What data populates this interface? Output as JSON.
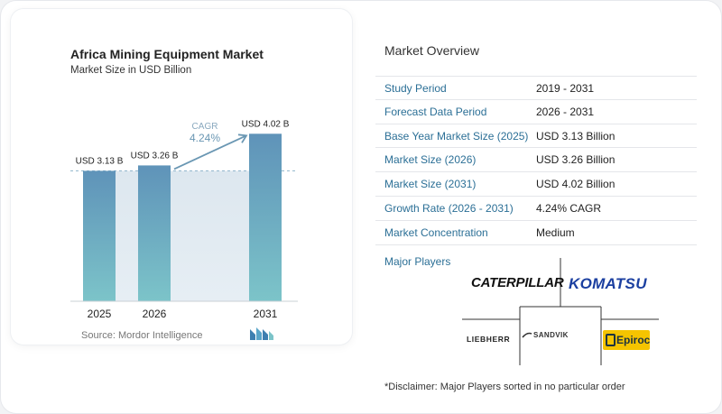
{
  "chart": {
    "title": "Africa Mining Equipment Market",
    "subtitle": "Market Size in USD Billion",
    "source": "Source: Mordor Intelligence",
    "cagr_label": "CAGR",
    "cagr_value": "4.24%"
  },
  "chart_data": {
    "type": "bar",
    "categories": [
      "2025",
      "2026",
      "2031"
    ],
    "values": [
      3.13,
      3.26,
      4.02
    ],
    "data_labels": [
      "USD 3.13 B",
      "USD 3.26 B",
      "USD 4.02 B"
    ],
    "title": "Africa Mining Equipment Market",
    "subtitle": "Market Size in USD Billion",
    "xlabel": "",
    "ylabel": "",
    "ylim": [
      0,
      4.2
    ],
    "annotation": "CAGR 4.24%",
    "colors": {
      "bar_top": "#5f93b9",
      "bar_bottom": "#7cc4c9",
      "band": "#e3ebf2",
      "arrow": "#6a97b3",
      "cagr_text": "#6a97b3"
    }
  },
  "overview": {
    "title": "Market Overview",
    "rows": [
      {
        "label": "Study Period",
        "value": "2019 - 2031"
      },
      {
        "label": "Forecast Data Period",
        "value": "2026 - 2031"
      },
      {
        "label": "Base Year Market Size (2025)",
        "value": "USD 3.13 Billion"
      },
      {
        "label": "Market Size (2026)",
        "value": "USD 3.26 Billion"
      },
      {
        "label": "Market Size (2031)",
        "value": "USD 4.02 Billion"
      },
      {
        "label": "Growth Rate (2026 - 2031)",
        "value": "4.24% CAGR"
      },
      {
        "label": "Market Concentration",
        "value": "Medium"
      }
    ]
  },
  "players": {
    "title": "Major Players",
    "logos": [
      "CATERPILLAR",
      "KOMATSU",
      "LIEBHERR",
      "SANDVIK",
      "Epiroc"
    ]
  },
  "disclaimer": "*Disclaimer: Major Players sorted in no particular order",
  "icons": {
    "source_logo": "mordor-intelligence-logo-icon",
    "epiroc_mark": "epiroc-e-icon",
    "sandvik_mark": "sandvik-swoosh-icon"
  }
}
